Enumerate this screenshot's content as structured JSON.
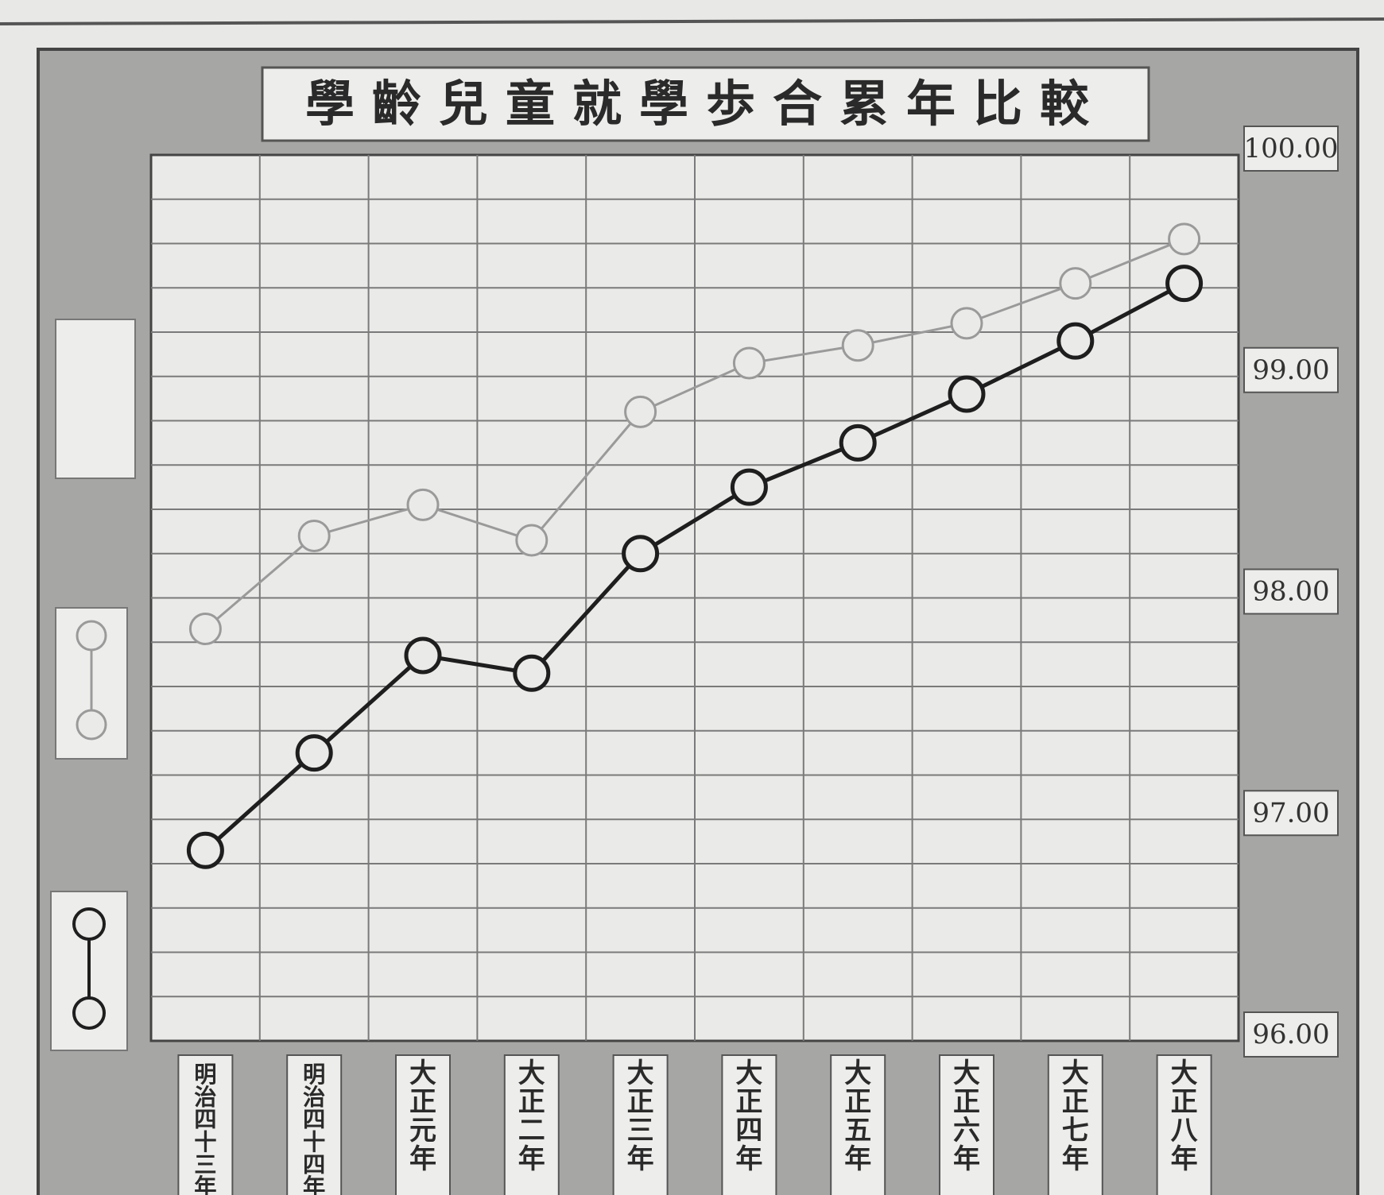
{
  "chart_data": {
    "type": "line",
    "title": "學齡兒童就學歩合累年比較",
    "categories": [
      "明治四十三年",
      "明治四十四年",
      "大正元年",
      "大正二年",
      "大正三年",
      "大正四年",
      "大正五年",
      "大正六年",
      "大正七年",
      "大正八年"
    ],
    "y_tick_labels": [
      "100.00",
      "99.00",
      "98.00",
      "97.00",
      "96.00"
    ],
    "y_ticks": [
      100,
      99,
      98,
      97,
      96
    ],
    "ylim": [
      96,
      100
    ],
    "grid": true,
    "legend_placement": "left",
    "series": [
      {
        "style": "faint",
        "color": "#9a9a9a",
        "values": [
          97.86,
          98.28,
          98.42,
          98.26,
          98.84,
          99.06,
          99.14,
          99.24,
          99.42,
          99.62
        ]
      },
      {
        "style": "dark",
        "color": "#1e1e1e",
        "values": [
          96.86,
          97.3,
          97.74,
          97.66,
          98.2,
          98.5,
          98.7,
          98.92,
          99.16,
          99.42
        ]
      }
    ]
  }
}
